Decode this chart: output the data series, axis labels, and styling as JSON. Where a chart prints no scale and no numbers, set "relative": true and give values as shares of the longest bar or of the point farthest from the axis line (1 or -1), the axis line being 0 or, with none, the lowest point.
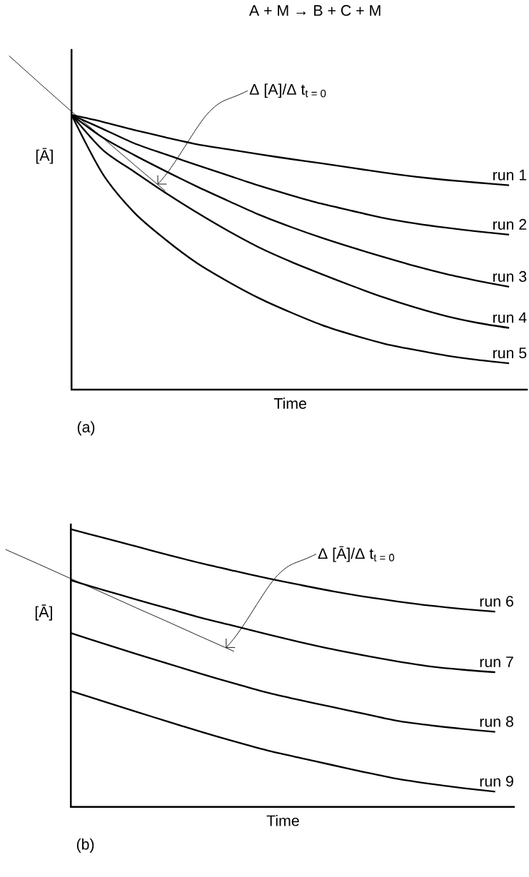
{
  "chart_data": [
    {
      "type": "line",
      "relative": true,
      "title": "A + M → B + C + M",
      "xlabel": "Time",
      "ylabel": "[Ā]",
      "categories": [
        null,
        null,
        null,
        null,
        null,
        null,
        null,
        null,
        null,
        null,
        null,
        null,
        null,
        null,
        null,
        null,
        null
      ],
      "series": [
        {
          "name": "run 1",
          "color": "#000000",
          "values": [
            null,
            null,
            0.823,
            0.802,
            0.778,
            0.756,
            0.735,
            0.72,
            0.705,
            0.691,
            0.678,
            0.664,
            0.65,
            0.638,
            0.628,
            0.62,
            0.612
          ]
        },
        {
          "name": "run 2",
          "color": "#000000",
          "values": [
            null,
            null,
            0.823,
            0.781,
            0.738,
            0.705,
            0.673,
            0.642,
            0.611,
            0.583,
            0.557,
            0.535,
            0.514,
            0.498,
            0.485,
            0.474,
            0.464
          ]
        },
        {
          "name": "run 3",
          "color": "#000000",
          "values": [
            null,
            null,
            0.823,
            0.755,
            0.703,
            0.655,
            0.609,
            0.566,
            0.524,
            0.488,
            0.455,
            0.425,
            0.397,
            0.37,
            0.346,
            0.326,
            0.308
          ]
        },
        {
          "name": "run 4",
          "color": "#000000",
          "values": [
            null,
            null,
            0.823,
            0.718,
            0.653,
            0.59,
            0.531,
            0.476,
            0.426,
            0.384,
            0.346,
            0.31,
            0.276,
            0.246,
            0.22,
            0.2,
            0.185
          ]
        },
        {
          "name": "run 5",
          "color": "#000000",
          "values": [
            null,
            null,
            0.823,
            0.646,
            0.531,
            0.45,
            0.38,
            0.324,
            0.274,
            0.232,
            0.194,
            0.164,
            0.138,
            0.119,
            0.102,
            0.089,
            0.079
          ]
        },
        {
          "type": "line",
          "color": "#000000",
          "values": [
            1.0,
            0.916,
            0.833,
            0.754,
            0.674,
            0.595,
            null,
            null,
            null,
            null,
            null,
            null,
            null,
            null,
            null,
            null,
            null
          ]
        }
      ],
      "annotations": [
        "Δ [A]/Δ t$_{t = 0}$",
        "(a)"
      ]
    },
    {
      "type": "line",
      "relative": true,
      "xlabel": "Time",
      "ylabel": "[Ā]",
      "categories": [
        null,
        null,
        null,
        null,
        null,
        null,
        null,
        null,
        null,
        null,
        null,
        null,
        null,
        null,
        null,
        null
      ],
      "series": [
        {
          "name": "run 6",
          "color": "#000000",
          "values": [
            null,
            null,
            1.0,
            0.969,
            0.938,
            0.907,
            0.877,
            0.85,
            0.824,
            0.8,
            0.777,
            0.757,
            0.74,
            0.725,
            0.713,
            0.703
          ]
        },
        {
          "name": "run 7",
          "color": "#000000",
          "values": [
            null,
            null,
            0.816,
            0.781,
            0.747,
            0.714,
            0.681,
            0.652,
            0.622,
            0.594,
            0.568,
            0.545,
            0.524,
            0.506,
            0.494,
            0.485
          ]
        },
        {
          "name": "run 8",
          "color": "#000000",
          "values": [
            null,
            null,
            0.626,
            0.588,
            0.551,
            0.515,
            0.479,
            0.445,
            0.412,
            0.385,
            0.36,
            0.335,
            0.31,
            0.294,
            0.281,
            0.27
          ]
        },
        {
          "name": "run 9",
          "color": "#000000",
          "values": [
            null,
            null,
            0.417,
            0.38,
            0.343,
            0.306,
            0.27,
            0.236,
            0.204,
            0.177,
            0.151,
            0.125,
            0.101,
            0.083,
            0.068,
            0.055
          ]
        },
        {
          "type": "line",
          "color": "#000000",
          "values": [
            0.927,
            0.875,
            0.822,
            0.77,
            0.717,
            0.665,
            0.612,
            0.56,
            null,
            null,
            null,
            null,
            null,
            null,
            null,
            null
          ]
        }
      ],
      "annotations": [
        "Δ [Ā]/Δ t$_{t = 0}$",
        "(b)"
      ]
    }
  ]
}
